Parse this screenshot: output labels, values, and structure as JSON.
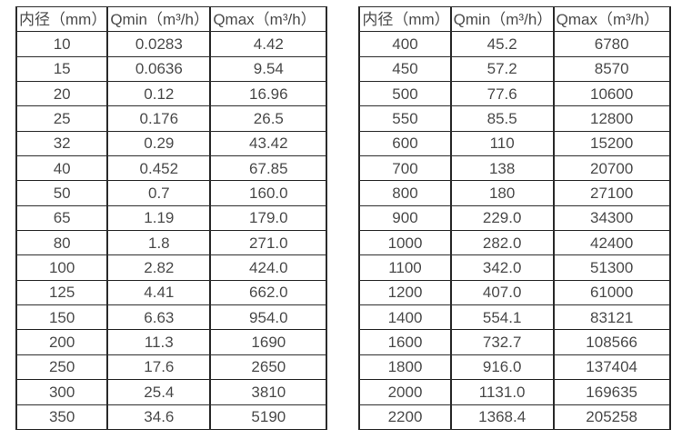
{
  "tables": [
    {
      "columns": [
        "内径（mm）",
        "Qmin（m³/h）",
        "Qmax（m³/h）"
      ],
      "rows": [
        [
          "10",
          "0.0283",
          "4.42"
        ],
        [
          "15",
          "0.0636",
          "9.54"
        ],
        [
          "20",
          "0.12",
          "16.96"
        ],
        [
          "25",
          "0.176",
          "26.5"
        ],
        [
          "32",
          "0.29",
          "43.42"
        ],
        [
          "40",
          "0.452",
          "67.85"
        ],
        [
          "50",
          "0.7",
          "160.0"
        ],
        [
          "65",
          "1.19",
          "179.0"
        ],
        [
          "80",
          "1.8",
          "271.0"
        ],
        [
          "100",
          "2.82",
          "424.0"
        ],
        [
          "125",
          "4.41",
          "662.0"
        ],
        [
          "150",
          "6.63",
          "954.0"
        ],
        [
          "200",
          "11.3",
          "1690"
        ],
        [
          "250",
          "17.6",
          "2650"
        ],
        [
          "300",
          "25.4",
          "3810"
        ],
        [
          "350",
          "34.6",
          "5190"
        ]
      ]
    },
    {
      "columns": [
        "内径（mm）",
        "Qmin（m³/h）",
        "Qmax（m³/h）"
      ],
      "rows": [
        [
          "400",
          "45.2",
          "6780"
        ],
        [
          "450",
          "57.2",
          "8570"
        ],
        [
          "500",
          "77.6",
          "10600"
        ],
        [
          "550",
          "85.5",
          "12800"
        ],
        [
          "600",
          "110",
          "15200"
        ],
        [
          "700",
          "138",
          "20700"
        ],
        [
          "800",
          "180",
          "27100"
        ],
        [
          "900",
          "229.0",
          "34300"
        ],
        [
          "1000",
          "282.0",
          "42400"
        ],
        [
          "1100",
          "342.0",
          "51300"
        ],
        [
          "1200",
          "407.0",
          "61000"
        ],
        [
          "1400",
          "554.1",
          "83121"
        ],
        [
          "1600",
          "732.7",
          "108566"
        ],
        [
          "1800",
          "916.0",
          "137404"
        ],
        [
          "2000",
          "1131.0",
          "169635"
        ],
        [
          "2200",
          "1368.4",
          "205258"
        ]
      ]
    }
  ],
  "colors": {
    "border": "#2a2a2a",
    "text": "#4a4a4a",
    "background": "#ffffff"
  }
}
